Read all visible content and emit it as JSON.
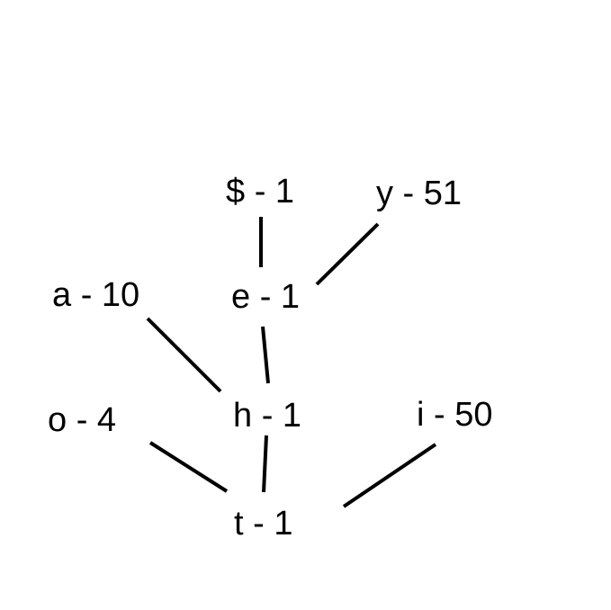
{
  "nodes": {
    "dollar": "$ - 1",
    "y": "y - 51",
    "a": "a - 10",
    "e": "e - 1",
    "o": "o - 4",
    "h": "h - 1",
    "i": "i - 50",
    "t": "t - 1"
  },
  "edges": [
    {
      "from": "e",
      "to": "dollar"
    },
    {
      "from": "e",
      "to": "y"
    },
    {
      "from": "h",
      "to": "a"
    },
    {
      "from": "h",
      "to": "e"
    },
    {
      "from": "t",
      "to": "o"
    },
    {
      "from": "t",
      "to": "h"
    },
    {
      "from": "t",
      "to": "i"
    }
  ]
}
